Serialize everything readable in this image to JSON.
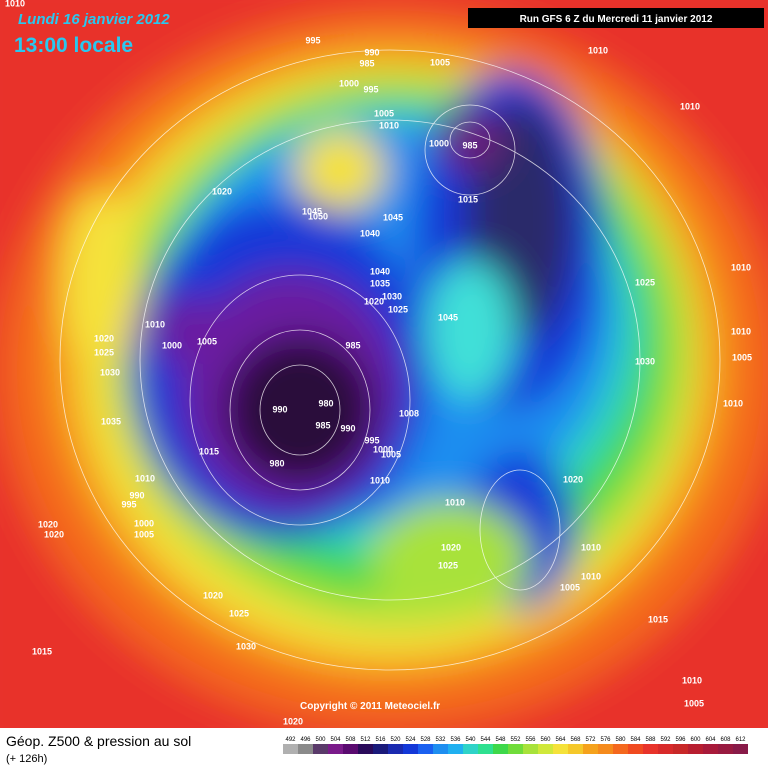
{
  "header": {
    "date": "Lundi 16 janvier 2012",
    "time": "13:00 locale",
    "run": "Run GFS 6 Z du Mercredi 11 janvier 2012"
  },
  "copyright": "Copyright © 2011 Meteociel.fr",
  "footer": {
    "title": "Géop. Z500 & pression au sol",
    "subtitle": "(+ 126h)",
    "scale_labels": [
      492,
      496,
      500,
      504,
      508,
      512,
      516,
      520,
      524,
      528,
      532,
      536,
      540,
      544,
      548,
      552,
      556,
      560,
      564,
      568,
      572,
      576,
      580,
      584,
      588,
      592,
      596,
      600,
      604,
      608,
      612
    ]
  },
  "isobar_labels": [
    1010,
    995,
    990,
    985,
    1005,
    1010,
    1000,
    995,
    1010,
    1005,
    1010,
    1000,
    985,
    1015,
    1020,
    1045,
    1050,
    1045,
    1040,
    1010,
    1040,
    1035,
    1025,
    1030,
    1020,
    1025,
    1045,
    1010,
    1020,
    1000,
    1005,
    1010,
    985,
    1025,
    1005,
    1030,
    1030,
    990,
    980,
    1008,
    1010,
    1035,
    985,
    990,
    995,
    1000,
    1005,
    1015,
    980,
    1010,
    1020,
    1010,
    1010,
    990,
    995,
    1000,
    1005,
    1020,
    1020,
    1020,
    1010,
    1025,
    1010,
    1005,
    1020,
    1025,
    1015,
    1015,
    1030,
    1010,
    1005,
    1020
  ]
}
